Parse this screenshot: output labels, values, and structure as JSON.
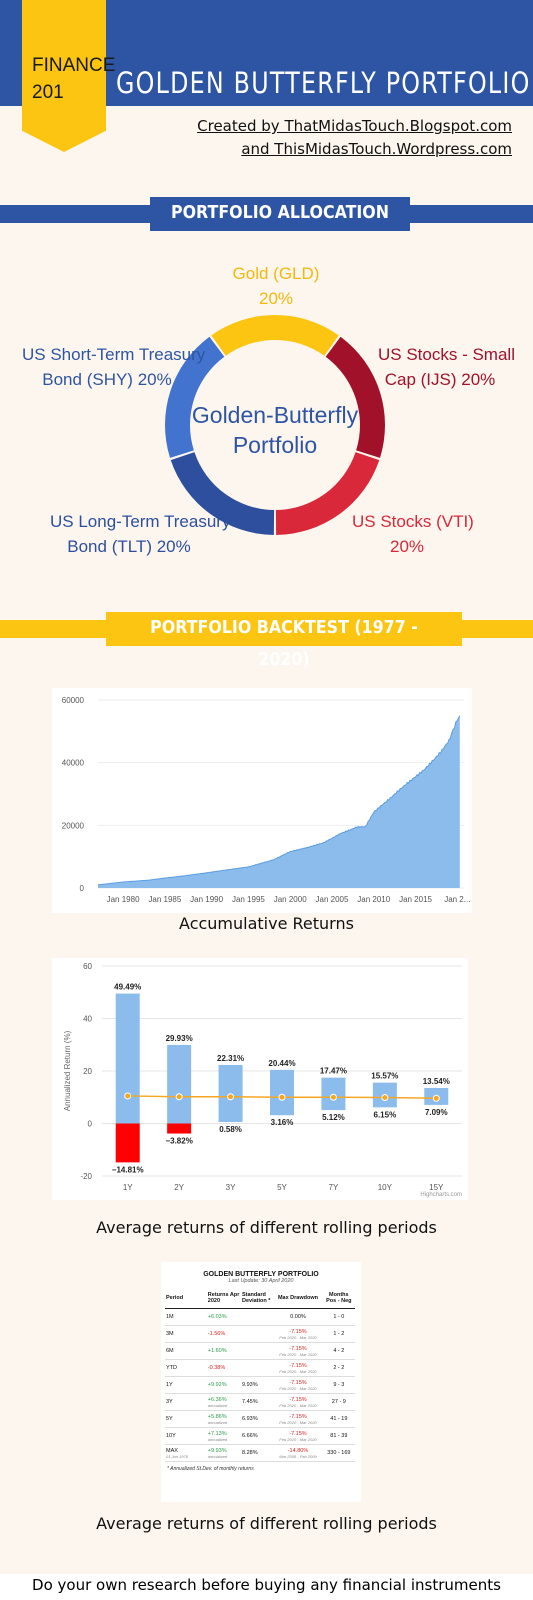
{
  "header": {
    "badge_line1": "FINANCE",
    "badge_line2": "201",
    "title": "GOLDEN BUTTERFLY PORTFOLIO",
    "credit_line1": "Created by ThatMidasTouch.Blogspot.com",
    "credit_line2": "and ThisMidasTouch.Wordpress.com"
  },
  "colors": {
    "blue": "#2e55a4",
    "yellow": "#fbc511",
    "gold": "#fbc511",
    "dark_red": "#a1122a",
    "red": "#d8283a",
    "light_blue": "#4173cf",
    "navy": "#2d4f9e",
    "area_fill": "#8cbcec",
    "bar_fill": "#8cbcec",
    "bar_neg": "#ff0000",
    "avg_line": "#f5a623"
  },
  "sections": {
    "allocation": "PORTFOLIO ALLOCATION",
    "backtest": "PORTFOLIO BACKTEST (1977 - 2020)"
  },
  "donut": {
    "center_line1": "Golden-Butterfly",
    "center_line2": "Portfolio",
    "labels": {
      "gold_name": "Gold (GLD)",
      "gold_pct": "20%",
      "small_cap_line1": "US Stocks - Small",
      "small_cap_line2": "Cap (IJS) 20%",
      "vti_line1": "US Stocks (VTI)",
      "vti_line2": "20%",
      "tlt_line1": "US Long-Term Treasury",
      "tlt_line2": "Bond (TLT) 20%",
      "shy_line1": "US Short-Term Treasury",
      "shy_line2": "Bond (SHY) 20%"
    }
  },
  "captions": {
    "accumulative": "Accumulative Returns",
    "rolling1": "Average returns of different rolling periods",
    "rolling2": "Average returns of different rolling periods"
  },
  "chart_data": [
    {
      "type": "pie",
      "title": "",
      "slices": [
        {
          "label": "Gold (GLD)",
          "value": 20,
          "color": "#fbc511"
        },
        {
          "label": "US Stocks - Small Cap (IJS)",
          "value": 20,
          "color": "#a1122a"
        },
        {
          "label": "US Stocks (VTI)",
          "value": 20,
          "color": "#d8283a"
        },
        {
          "label": "US Long-Term Treasury Bond (TLT)",
          "value": 20,
          "color": "#2d4f9e"
        },
        {
          "label": "US Short-Term Treasury Bond (SHY)",
          "value": 20,
          "color": "#4173cf"
        }
      ]
    },
    {
      "type": "area",
      "title": "",
      "xlabel": "",
      "ylabel": "",
      "ylim": [
        0,
        60000
      ],
      "y_ticks": [
        "0",
        "20000",
        "40000",
        "60000"
      ],
      "x_ticks": [
        "Jan 1980",
        "Jan 1985",
        "Jan 1990",
        "Jan 1995",
        "Jan 2000",
        "Jan 2005",
        "Jan 2010",
        "Jan 2015",
        "Jan 2..."
      ],
      "x": [
        1977,
        1980,
        1983,
        1985,
        1988,
        1990,
        1993,
        1995,
        1998,
        2000,
        2002,
        2004,
        2006,
        2008,
        2009,
        2010,
        2012,
        2014,
        2016,
        2018,
        2019,
        2020.3
      ],
      "y": [
        1000,
        1900,
        2500,
        3200,
        4100,
        4800,
        6000,
        6800,
        9000,
        11500,
        12800,
        14500,
        17500,
        19500,
        19500,
        24000,
        28500,
        33500,
        38000,
        43500,
        47000,
        55000
      ]
    },
    {
      "type": "bar",
      "title": "",
      "ylabel": "Annualized Return (%)",
      "ylim": [
        -20,
        60
      ],
      "y_ticks": [
        "60",
        "40",
        "20",
        "0",
        "-20"
      ],
      "categories": [
        "1Y",
        "2Y",
        "3Y",
        "5Y",
        "7Y",
        "10Y",
        "15Y"
      ],
      "max": [
        49.49,
        29.93,
        22.31,
        20.44,
        17.47,
        15.57,
        13.54
      ],
      "min": [
        -14.81,
        -3.82,
        0.58,
        3.16,
        5.12,
        6.15,
        7.09
      ],
      "max_labels": [
        "49.49%",
        "29.93%",
        "22.31%",
        "20.44%",
        "17.47%",
        "15.57%",
        "13.54%"
      ],
      "min_labels": [
        "−14.81%",
        "−3.82%",
        "0.58%",
        "3.16%",
        "5.12%",
        "6.15%",
        "7.09%"
      ],
      "average": [
        10.5,
        10.2,
        10.2,
        10.0,
        10.0,
        9.9,
        9.6
      ],
      "credit": "Highcharts.com"
    }
  ],
  "table": {
    "title": "GOLDEN BUTTERFLY PORTFOLIO",
    "subtitle": "Last Update: 30 April 2020",
    "headers": [
      "Period",
      "Returns Apr 2020",
      "Standard Deviation *",
      "Max Drawdown",
      "Months Pos - Neg"
    ],
    "rows": [
      {
        "period": "1M",
        "ret": "+6.03%",
        "ret_sub": "",
        "sd": "",
        "dd": "0.00%",
        "dd_sub": "",
        "pn": "1 - 0"
      },
      {
        "period": "3M",
        "ret": "-1.56%",
        "ret_sub": "",
        "sd": "",
        "dd": "-7.15%",
        "dd_sub": "Feb 2020 - Mar 2020",
        "pn": "1 - 2"
      },
      {
        "period": "6M",
        "ret": "+1.60%",
        "ret_sub": "",
        "sd": "",
        "dd": "-7.15%",
        "dd_sub": "Feb 2020 - Mar 2020",
        "pn": "4 - 2"
      },
      {
        "period": "YTD",
        "ret": "-0.38%",
        "ret_sub": "",
        "sd": "",
        "dd": "-7.15%",
        "dd_sub": "Feb 2020 - Mar 2020",
        "pn": "2 - 2"
      },
      {
        "period": "1Y",
        "ret": "+9.92%",
        "ret_sub": "",
        "sd": "9.93%",
        "dd": "-7.15%",
        "dd_sub": "Feb 2020 - Mar 2020",
        "pn": "9 - 3"
      },
      {
        "period": "3Y",
        "ret": "+6.36%",
        "ret_sub": "annualized",
        "sd": "7.45%",
        "dd": "-7.15%",
        "dd_sub": "Feb 2020 - Mar 2020",
        "pn": "27 - 9"
      },
      {
        "period": "5Y",
        "ret": "+5.86%",
        "ret_sub": "annualized",
        "sd": "6.93%",
        "dd": "-7.15%",
        "dd_sub": "Feb 2020 - Mar 2020",
        "pn": "41 - 19"
      },
      {
        "period": "10Y",
        "ret": "+7.13%",
        "ret_sub": "annualized",
        "sd": "6.66%",
        "dd": "-7.15%",
        "dd_sub": "Feb 2020 - Mar 2020",
        "pn": "81 - 39"
      },
      {
        "period": "MAX",
        "period_sub": "01 Jan 1978",
        "ret": "+9.93%",
        "ret_sub": "annualized",
        "sd": "8.28%",
        "dd": "-14.80%",
        "dd_sub": "Mar 2008 - Feb 2009",
        "pn": "330 - 169"
      }
    ],
    "footnote": "* Annualized St.Dev. of monthly returns"
  },
  "footer": "Do your own research before buying any financial instruments"
}
